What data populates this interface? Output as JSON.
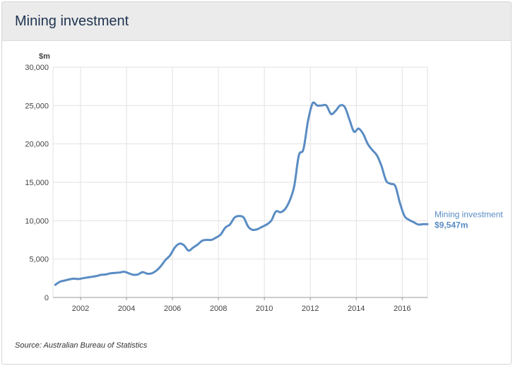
{
  "header": {
    "title": "Mining investment"
  },
  "source": "Source: Australian Bureau of Statistics",
  "colors": {
    "line": "#5a8cc3",
    "grid": "#e2e2e2",
    "axis_text": "#444444",
    "header_bg": "#ebebeb"
  },
  "chart_data": {
    "type": "line",
    "title": "Mining investment",
    "ylabel": "$m",
    "xlabel": "",
    "xlim": [
      2000.8,
      2017.1
    ],
    "ylim": [
      0,
      30000
    ],
    "grid": true,
    "y_ticks": [
      0,
      5000,
      10000,
      15000,
      20000,
      25000,
      30000
    ],
    "y_tick_labels": [
      "0",
      "5,000",
      "10,000",
      "15,000",
      "20,000",
      "25,000",
      "30,000"
    ],
    "x_ticks": [
      2002,
      2004,
      2006,
      2008,
      2010,
      2012,
      2014,
      2016
    ],
    "x_tick_labels": [
      "2002",
      "2004",
      "2006",
      "2008",
      "2010",
      "2012",
      "2014",
      "2016"
    ],
    "series": [
      {
        "name": "Mining investment",
        "end_label": "Mining investment",
        "end_value_label": "$9,547m",
        "x": [
          2000.9,
          2001.1,
          2001.3,
          2001.5,
          2001.7,
          2001.9,
          2002.1,
          2002.3,
          2002.5,
          2002.7,
          2002.9,
          2003.1,
          2003.3,
          2003.5,
          2003.7,
          2003.9,
          2004.1,
          2004.3,
          2004.5,
          2004.7,
          2004.9,
          2005.1,
          2005.3,
          2005.5,
          2005.7,
          2005.9,
          2006.1,
          2006.3,
          2006.5,
          2006.7,
          2006.9,
          2007.1,
          2007.3,
          2007.5,
          2007.7,
          2007.9,
          2008.1,
          2008.3,
          2008.5,
          2008.7,
          2008.9,
          2009.1,
          2009.3,
          2009.5,
          2009.7,
          2009.9,
          2010.1,
          2010.3,
          2010.5,
          2010.7,
          2010.9,
          2011.1,
          2011.3,
          2011.5,
          2011.7,
          2011.9,
          2012.1,
          2012.3,
          2012.5,
          2012.7,
          2012.9,
          2013.1,
          2013.3,
          2013.5,
          2013.7,
          2013.9,
          2014.1,
          2014.3,
          2014.5,
          2014.7,
          2014.9,
          2015.1,
          2015.3,
          2015.5,
          2015.7,
          2015.9,
          2016.1,
          2016.3,
          2016.5,
          2016.7,
          2016.9,
          2017.1
        ],
        "values": [
          1650,
          2050,
          2200,
          2350,
          2450,
          2400,
          2500,
          2600,
          2700,
          2800,
          2950,
          3000,
          3150,
          3200,
          3250,
          3350,
          3150,
          2950,
          3000,
          3300,
          3100,
          3150,
          3500,
          4100,
          4900,
          5500,
          6500,
          7000,
          6800,
          6100,
          6500,
          6900,
          7400,
          7500,
          7500,
          7800,
          8200,
          9100,
          9500,
          10400,
          10600,
          10400,
          9200,
          8800,
          8900,
          9200,
          9500,
          10000,
          11200,
          11100,
          11500,
          12600,
          14500,
          18500,
          19300,
          23000,
          25300,
          25000,
          25000,
          25000,
          23900,
          24300,
          25000,
          24800,
          23200,
          21600,
          22000,
          21300,
          20000,
          19200,
          18500,
          17100,
          15200,
          14800,
          14500,
          12300,
          10600,
          10100,
          9800,
          9500,
          9547,
          9547
        ]
      }
    ]
  }
}
